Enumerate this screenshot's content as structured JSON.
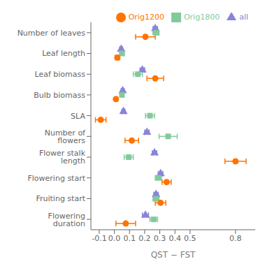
{
  "chart_data": {
    "type": "scatter",
    "categories": [
      "Number of leaves",
      "Leaf length",
      "Leaf biomass",
      "Bulb biomass",
      "SLA",
      "Number of flowers",
      "Flower stalk length",
      "Flowering start",
      "Fruiting start",
      "Flowering duration"
    ],
    "xlabel": "QST − FST",
    "xlim": [
      -0.155,
      0.93
    ],
    "xticks": [
      -0.1,
      {
        "value": 0,
        "label": "0.0"
      },
      0.1,
      0.2,
      0.3,
      0.4,
      0.5,
      0.8
    ],
    "grid": false,
    "legend": "upper right",
    "series": [
      {
        "name": "all",
        "marker": "triangle",
        "color": "#8884d8",
        "values": [
          0.27,
          0.045,
          0.185,
          0.055,
          0.06,
          0.215,
          0.265,
          0.305,
          0.275,
          0.205
        ],
        "ci_lo": [
          0.255,
          0.035,
          0.17,
          0.045,
          0.05,
          0.2,
          0.25,
          0.29,
          0.26,
          0.185
        ],
        "ci_hi": [
          0.285,
          0.055,
          0.2,
          0.065,
          0.07,
          0.23,
          0.28,
          0.32,
          0.29,
          0.225
        ]
      },
      {
        "name": "Orig1800",
        "marker": "square",
        "color": "#82ca9d",
        "values": [
          0.275,
          0.05,
          0.155,
          0.05,
          0.235,
          0.355,
          0.095,
          0.29,
          0.275,
          0.26
        ],
        "ci_lo": [
          0.255,
          0.035,
          0.125,
          0.038,
          0.205,
          0.295,
          0.065,
          0.27,
          0.255,
          0.235
        ],
        "ci_hi": [
          0.295,
          0.065,
          0.185,
          0.062,
          0.265,
          0.415,
          0.125,
          0.31,
          0.295,
          0.285
        ]
      },
      {
        "name": "Orig1200",
        "marker": "circle",
        "color": "#ff7300",
        "values": [
          0.205,
          0.02,
          0.27,
          0.01,
          -0.09,
          0.115,
          0.8,
          0.345,
          0.305,
          0.075
        ],
        "ci_lo": [
          0.14,
          0.005,
          0.215,
          0.002,
          -0.125,
          0.07,
          0.73,
          0.315,
          0.27,
          0.01
        ],
        "ci_hi": [
          0.27,
          0.035,
          0.325,
          0.022,
          -0.055,
          0.16,
          0.87,
          0.375,
          0.34,
          0.14
        ]
      }
    ]
  }
}
